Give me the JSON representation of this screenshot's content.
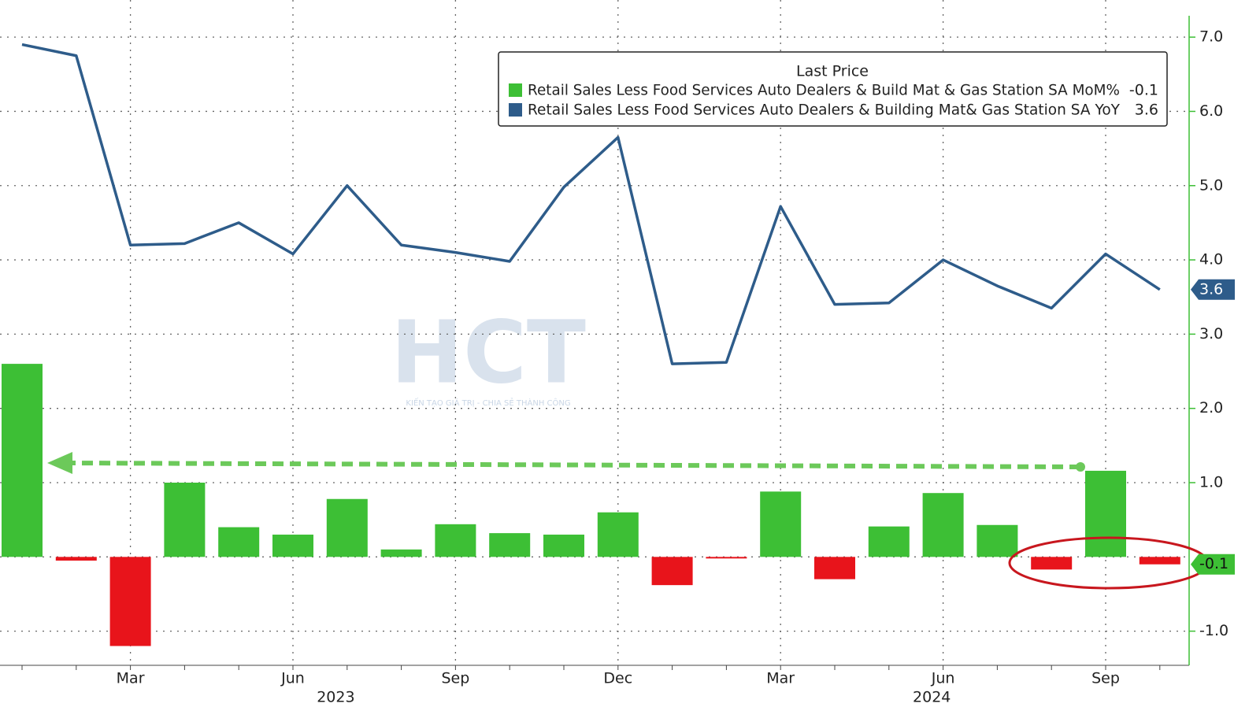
{
  "chart_data": {
    "type": "bar-line",
    "categories": [
      null,
      null,
      "Mar",
      null,
      null,
      "Jun",
      null,
      null,
      "Sep",
      null,
      null,
      "Dec",
      null,
      null,
      "Mar",
      null,
      null,
      "Jun",
      null,
      null,
      "Sep",
      null
    ],
    "years": [
      "2023",
      "2024"
    ],
    "legend_title": "Last Price",
    "series": [
      {
        "name": "Retail Sales Less Food Services Auto Dealers & Build Mat & Gas Station SA MoM%",
        "type": "bar",
        "color": "#3dbf35",
        "negative_color": "#e8141b",
        "values": [
          2.6,
          -0.05,
          -1.2,
          1.0,
          0.4,
          0.3,
          0.78,
          0.1,
          0.44,
          0.32,
          0.3,
          0.6,
          -0.38,
          -0.02,
          0.88,
          -0.3,
          0.41,
          0.86,
          0.43,
          -0.17,
          1.16,
          -0.1
        ]
      },
      {
        "name": "Retail Sales Less Food Services Auto Dealers & Building Mat& Gas Station SA YoY",
        "type": "line",
        "color": "#2e5c8a",
        "values": [
          6.9,
          6.75,
          4.2,
          4.22,
          4.5,
          4.08,
          5.0,
          4.2,
          4.1,
          3.98,
          4.98,
          5.65,
          2.6,
          2.62,
          4.72,
          3.4,
          3.42,
          4.0,
          3.65,
          3.35,
          4.08,
          3.6
        ]
      }
    ],
    "ylim": [
      -1.46,
      7.5
    ],
    "yticks": [
      {
        "value": -1,
        "label": "-1.0"
      },
      {
        "value": 1,
        "label": "1.0"
      },
      {
        "value": 2,
        "label": "2.0"
      },
      {
        "value": 3,
        "label": "3.0"
      },
      {
        "value": 4,
        "label": "4.0"
      },
      {
        "value": 5,
        "label": "5.0"
      },
      {
        "value": 6,
        "label": "6.0"
      },
      {
        "value": 7,
        "label": "7.0"
      }
    ],
    "grid": true,
    "watermark": "HCT",
    "watermark_tagline": "KIẾN TẠO GIÁ TRỊ - CHIA SẺ THÀNH CÔNG"
  }
}
